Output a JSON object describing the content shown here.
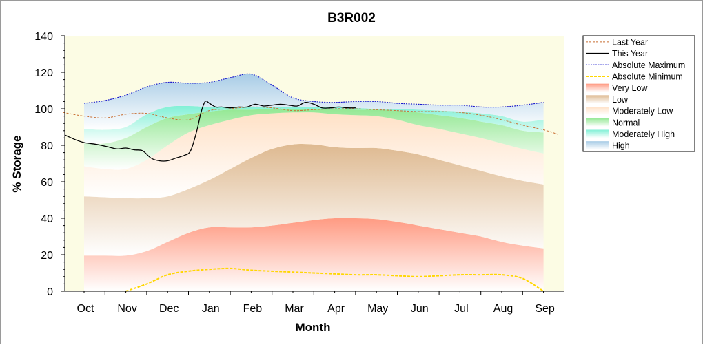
{
  "chart_data": {
    "type": "area",
    "title": "B3R002",
    "xlabel": "Month",
    "ylabel": "% Storage",
    "ylim": [
      0,
      140
    ],
    "yticks": [
      0,
      20,
      40,
      60,
      80,
      100,
      120,
      140
    ],
    "categories": [
      "Oct",
      "Nov",
      "Dec",
      "Jan",
      "Feb",
      "Mar",
      "Apr",
      "May",
      "Jun",
      "Jul",
      "Aug",
      "Sep"
    ],
    "grid": false,
    "legend_position": "right",
    "legend": [
      {
        "key": "last_year",
        "label": "Last Year"
      },
      {
        "key": "this_year",
        "label": "This Year"
      },
      {
        "key": "abs_max",
        "label": "Absolute Maximum"
      },
      {
        "key": "abs_min",
        "label": "Absolute Minimum"
      },
      {
        "key": "very_low",
        "label": "Very Low"
      },
      {
        "key": "low",
        "label": "Low"
      },
      {
        "key": "mod_low",
        "label": "Moderately Low"
      },
      {
        "key": "normal",
        "label": "Normal"
      },
      {
        "key": "mod_high",
        "label": "Moderately High"
      },
      {
        "key": "high",
        "label": "High"
      }
    ],
    "bands": {
      "x": [
        0,
        0.5,
        1,
        1.5,
        2,
        2.5,
        3,
        3.5,
        4,
        4.5,
        5,
        5.5,
        6,
        6.5,
        7,
        7.5,
        8,
        8.5,
        9,
        9.5,
        10,
        10.5,
        11
      ],
      "boundaries": {
        "abs_min": [
          0,
          0,
          0,
          4,
          9,
          11,
          12,
          12.5,
          11.5,
          11,
          10.5,
          10,
          9.5,
          9,
          9,
          8.5,
          8,
          8.5,
          9,
          9,
          9,
          7,
          0
        ],
        "very_low": [
          19.5,
          19.5,
          19.5,
          22,
          27,
          32,
          35,
          35,
          35,
          36,
          37.5,
          39,
          40,
          40,
          39.5,
          38,
          36,
          34,
          32,
          30,
          27,
          25,
          23.5
        ],
        "low": [
          52,
          51.5,
          51,
          51,
          52,
          56,
          61,
          67,
          73,
          78,
          80.5,
          80.5,
          79,
          78.5,
          78.5,
          77,
          75,
          72,
          69,
          66,
          63,
          60.5,
          58.5
        ],
        "mod_low": [
          68.5,
          67,
          67,
          72,
          80,
          87,
          91,
          94,
          96.5,
          97.5,
          98,
          98,
          97,
          96.5,
          96,
          94,
          91,
          89,
          86.5,
          84,
          81,
          78,
          75.5
        ],
        "normal": [
          81,
          81,
          84,
          90,
          95,
          97,
          98.5,
          99.5,
          99.5,
          100,
          100,
          100,
          100,
          99.5,
          99.5,
          99,
          98,
          96.5,
          95,
          93,
          91,
          88,
          87
        ],
        "mod_high": [
          89,
          88.5,
          90,
          97,
          101,
          101.5,
          101,
          101,
          101,
          101,
          101,
          101,
          101,
          100.5,
          100,
          100,
          99.5,
          99,
          98.5,
          97.5,
          96,
          93,
          94
        ],
        "high": [
          103,
          104.5,
          107.5,
          112,
          114.5,
          114,
          114.5,
          117,
          119,
          113,
          106,
          104,
          103.5,
          104,
          104,
          103,
          102.5,
          102,
          102,
          101,
          101,
          102,
          103.5
        ]
      },
      "colors": {
        "very_low": "#ff9a82",
        "low": "#deb990",
        "mod_low": "#ffe1c6",
        "normal": "#94e894",
        "mod_high": "#82f0d6",
        "high": "#a8cce6",
        "background": "#fcfce4"
      }
    },
    "series": [
      {
        "key": "last_year",
        "name": "Last Year",
        "color": "#c86e32",
        "x": [
          -0.5,
          0,
          0.5,
          1,
          1.5,
          2,
          2.5,
          3,
          3.5,
          4,
          4.5,
          5,
          5.5,
          6,
          6.5,
          7,
          7.5,
          8,
          8.5,
          9,
          9.5,
          10,
          10.5,
          11,
          11.35
        ],
        "values": [
          98,
          96,
          95,
          97,
          97.5,
          95,
          94,
          99,
          100,
          101,
          100.5,
          99,
          99.5,
          100,
          100,
          99.5,
          99,
          98.5,
          98.5,
          98,
          96.5,
          94,
          91,
          88.5,
          86
        ]
      },
      {
        "key": "this_year",
        "name": "This Year",
        "color": "#000000",
        "x": [
          -0.45,
          -0.2,
          0,
          0.3,
          0.6,
          0.8,
          1,
          1.2,
          1.4,
          1.6,
          1.8,
          2,
          2.2,
          2.4,
          2.55,
          2.7,
          2.8,
          2.9,
          3,
          3.15,
          3.3,
          3.5,
          3.7,
          3.9,
          4.1,
          4.3,
          4.5,
          4.7,
          4.9,
          5.1,
          5.3,
          5.5,
          5.7,
          5.9,
          6.1,
          6.3,
          6.5
        ],
        "values": [
          85.5,
          83,
          81.5,
          80.5,
          79,
          78,
          78.5,
          77.5,
          77,
          73,
          71.5,
          71.5,
          73,
          74.5,
          77,
          88,
          98,
          104,
          103,
          101,
          101,
          100.5,
          101,
          101,
          102.5,
          101.5,
          102,
          102.5,
          102,
          101.5,
          103.5,
          102.5,
          100.5,
          100.5,
          101,
          100.5,
          100.5
        ]
      },
      {
        "key": "abs_max",
        "name": "Absolute Maximum",
        "color": "#1a1acc",
        "x": [
          0,
          0.5,
          1,
          1.5,
          2,
          2.5,
          3,
          3.5,
          4,
          4.5,
          5,
          5.5,
          6,
          6.5,
          7,
          7.5,
          8,
          8.5,
          9,
          9.5,
          10,
          10.5,
          11
        ],
        "values": [
          103,
          104.5,
          107.5,
          112,
          114.5,
          114,
          114.5,
          117,
          119,
          113,
          106,
          104,
          103.5,
          104,
          104,
          103,
          102.5,
          102,
          102,
          101,
          101,
          102,
          103.5
        ]
      },
      {
        "key": "abs_min",
        "name": "Absolute Minimum",
        "color": "#ffd700",
        "x": [
          1,
          1.5,
          2,
          2.5,
          3,
          3.5,
          4,
          4.5,
          5,
          5.5,
          6,
          6.5,
          7,
          7.5,
          8,
          8.5,
          9,
          9.5,
          10,
          10.5,
          11
        ],
        "values": [
          0,
          4,
          9,
          11,
          12,
          12.5,
          11.5,
          11,
          10.5,
          10,
          9.5,
          9,
          9,
          8.5,
          8,
          8.5,
          9,
          9,
          9,
          7,
          0
        ]
      }
    ]
  }
}
